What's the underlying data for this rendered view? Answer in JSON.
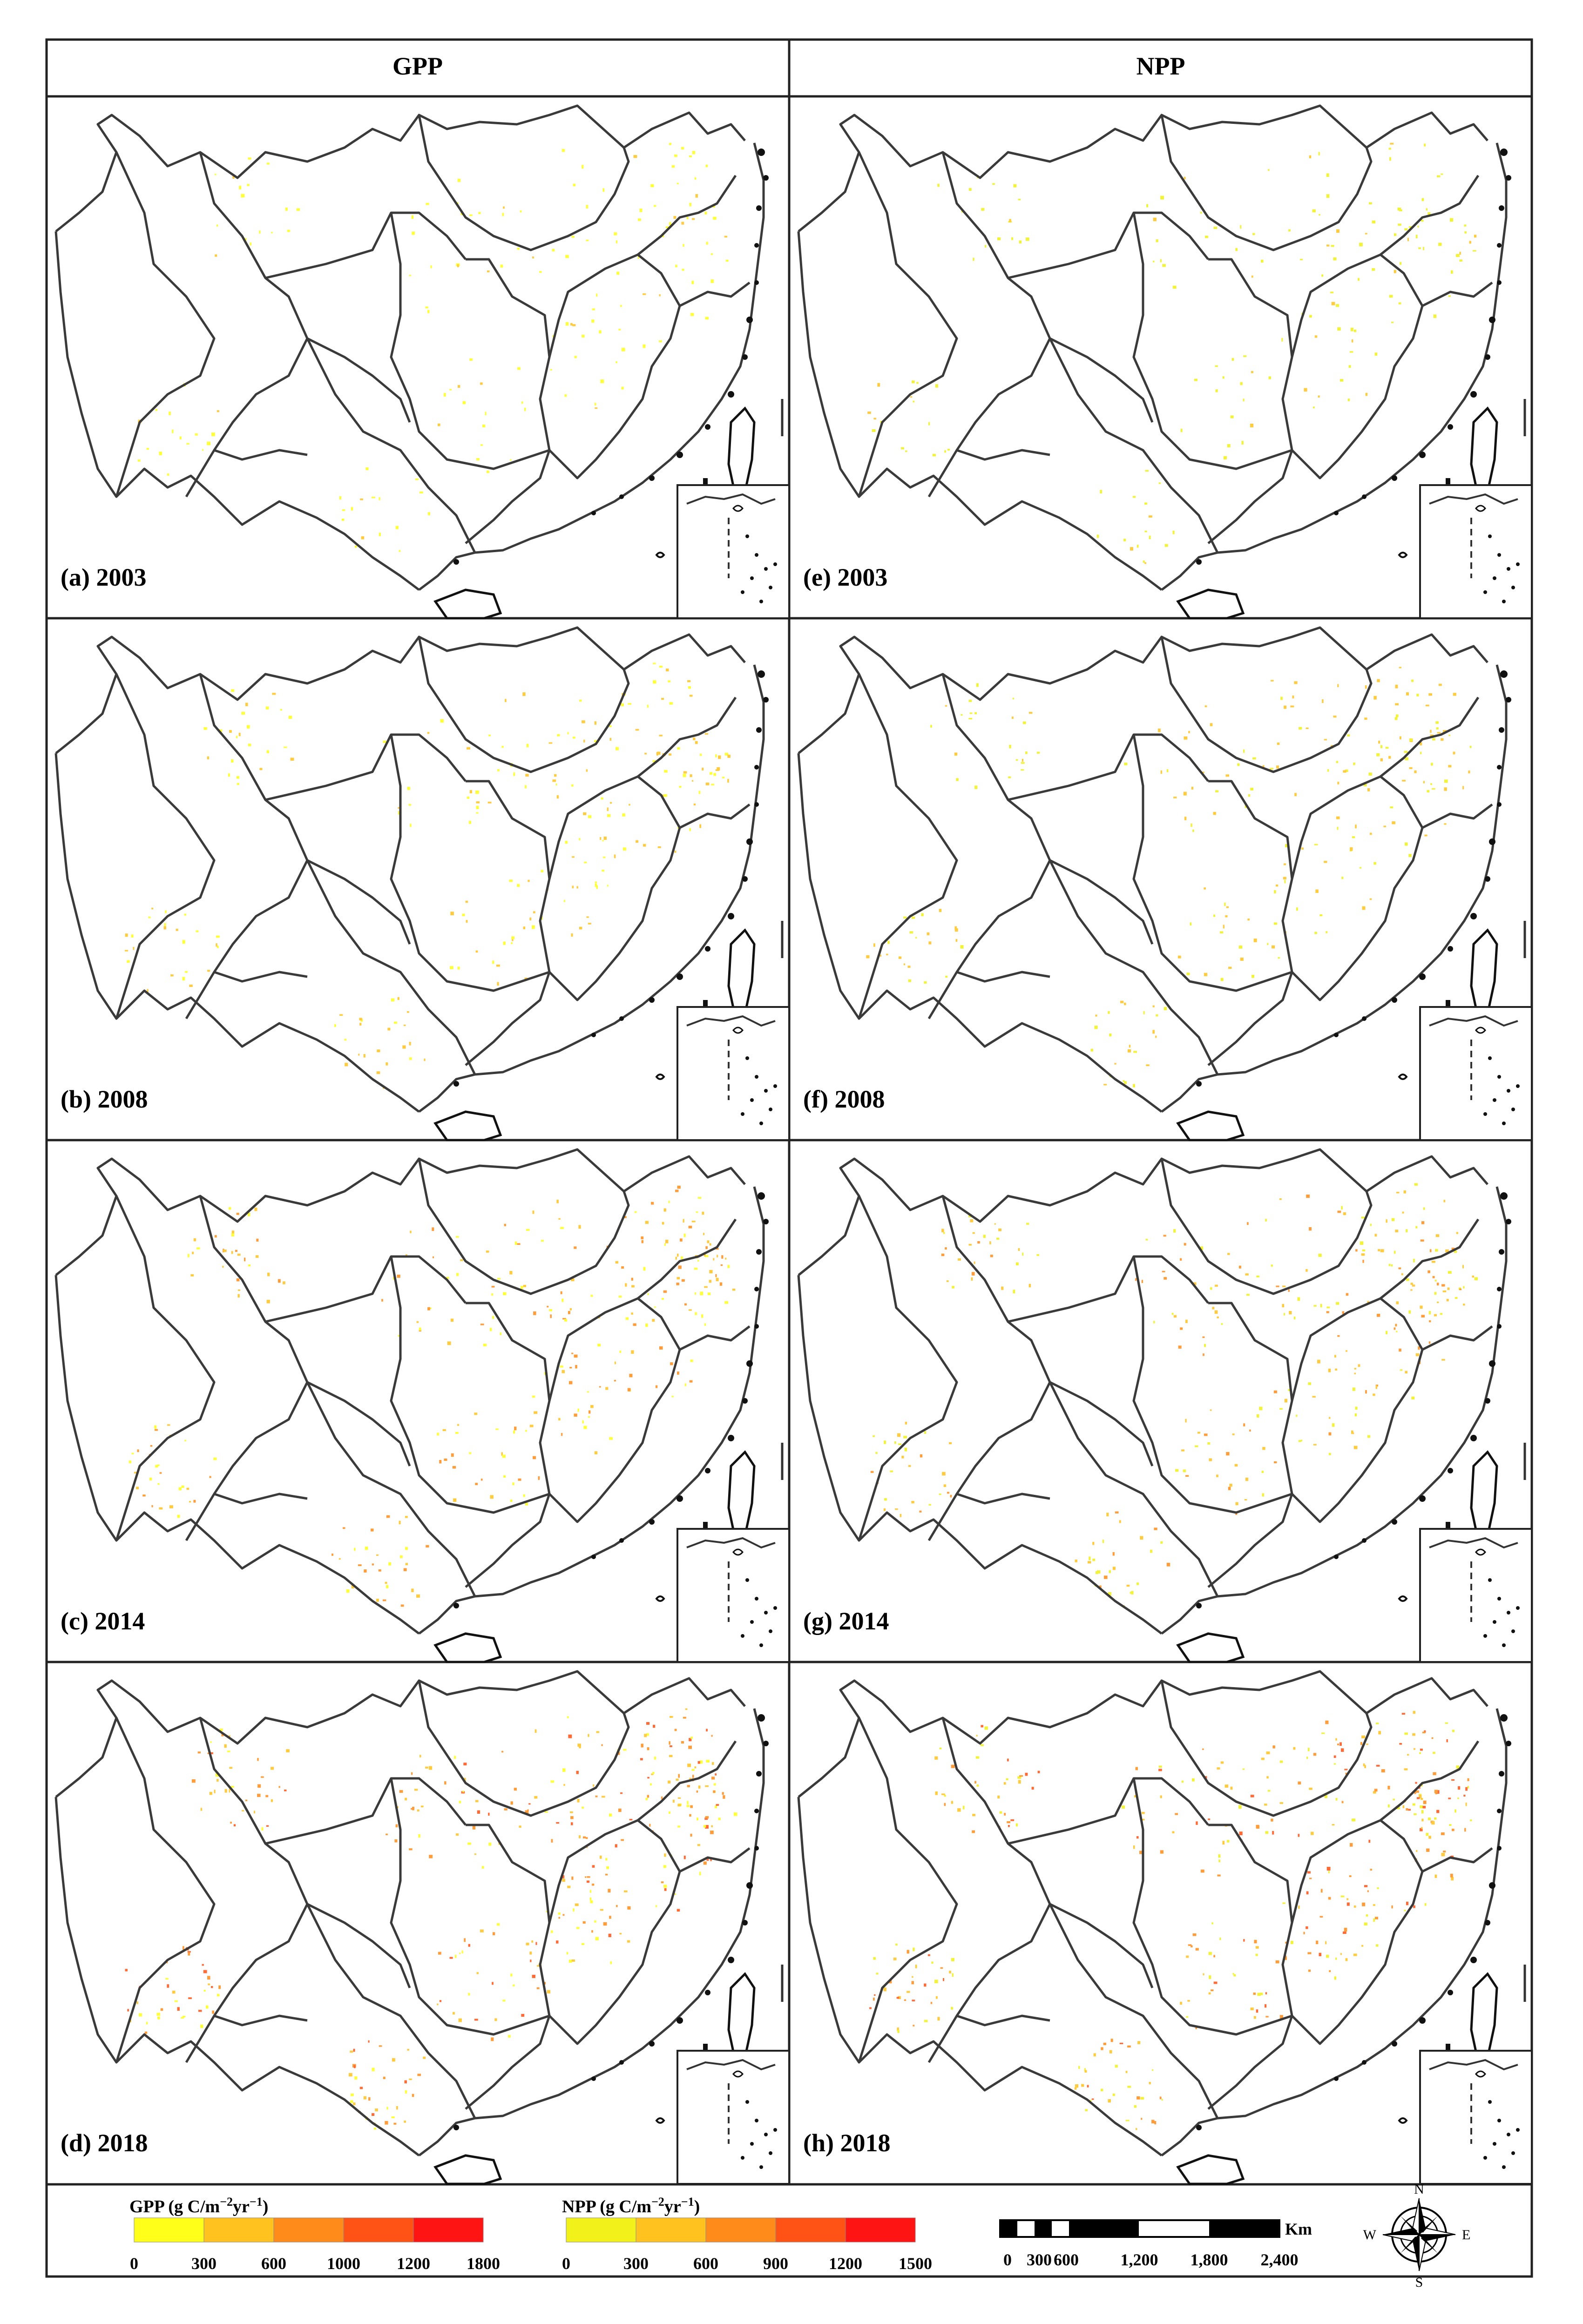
{
  "columns": [
    {
      "id": "gpp",
      "header": "GPP"
    },
    {
      "id": "npp",
      "header": "NPP"
    }
  ],
  "panels": [
    {
      "col": 0,
      "row": 0,
      "label": "(a) 2003",
      "year": 2003,
      "variable": "GPP"
    },
    {
      "col": 0,
      "row": 1,
      "label": "(b) 2008",
      "year": 2008,
      "variable": "GPP"
    },
    {
      "col": 0,
      "row": 2,
      "label": "(c) 2014",
      "year": 2014,
      "variable": "GPP"
    },
    {
      "col": 0,
      "row": 3,
      "label": "(d) 2018",
      "year": 2018,
      "variable": "GPP"
    },
    {
      "col": 1,
      "row": 0,
      "label": "(e) 2003",
      "year": 2003,
      "variable": "NPP"
    },
    {
      "col": 1,
      "row": 1,
      "label": "(f) 2008",
      "year": 2008,
      "variable": "NPP"
    },
    {
      "col": 1,
      "row": 2,
      "label": "(g) 2014",
      "year": 2014,
      "variable": "NPP"
    },
    {
      "col": 1,
      "row": 3,
      "label": "(h) 2018",
      "year": 2018,
      "variable": "NPP"
    }
  ],
  "legends": {
    "gpp": {
      "title": "GPP (g C/m",
      "exp1": "−2",
      "mid": "yr",
      "exp2": "−1",
      "close": ")",
      "breaks": [
        "0",
        "300",
        "600",
        "1000",
        "1200",
        "1800"
      ],
      "colors": [
        "#ffff1a",
        "#ffc21f",
        "#ff8c1a",
        "#ff5214",
        "#ff1414"
      ]
    },
    "npp": {
      "title": "NPP (g C/m",
      "exp1": "−2",
      "mid": "yr",
      "exp2": "−1",
      "close": ")",
      "breaks": [
        "0",
        "300",
        "600",
        "900",
        "1200",
        "1500"
      ],
      "colors": [
        "#f2f21a",
        "#ffc21f",
        "#ff8c1a",
        "#ff5214",
        "#ff1414"
      ]
    }
  },
  "scalebar": {
    "labels": [
      "0",
      "300",
      "600",
      "1,200",
      "1,800",
      "2,400"
    ],
    "unit": "Km"
  },
  "north_arrow": {
    "n": "N",
    "s": "S",
    "e": "E",
    "w": "W"
  },
  "map_style": {
    "boundary_color": "#3a3a3a",
    "coast_color": "#111111",
    "frame_color": "#222222"
  }
}
